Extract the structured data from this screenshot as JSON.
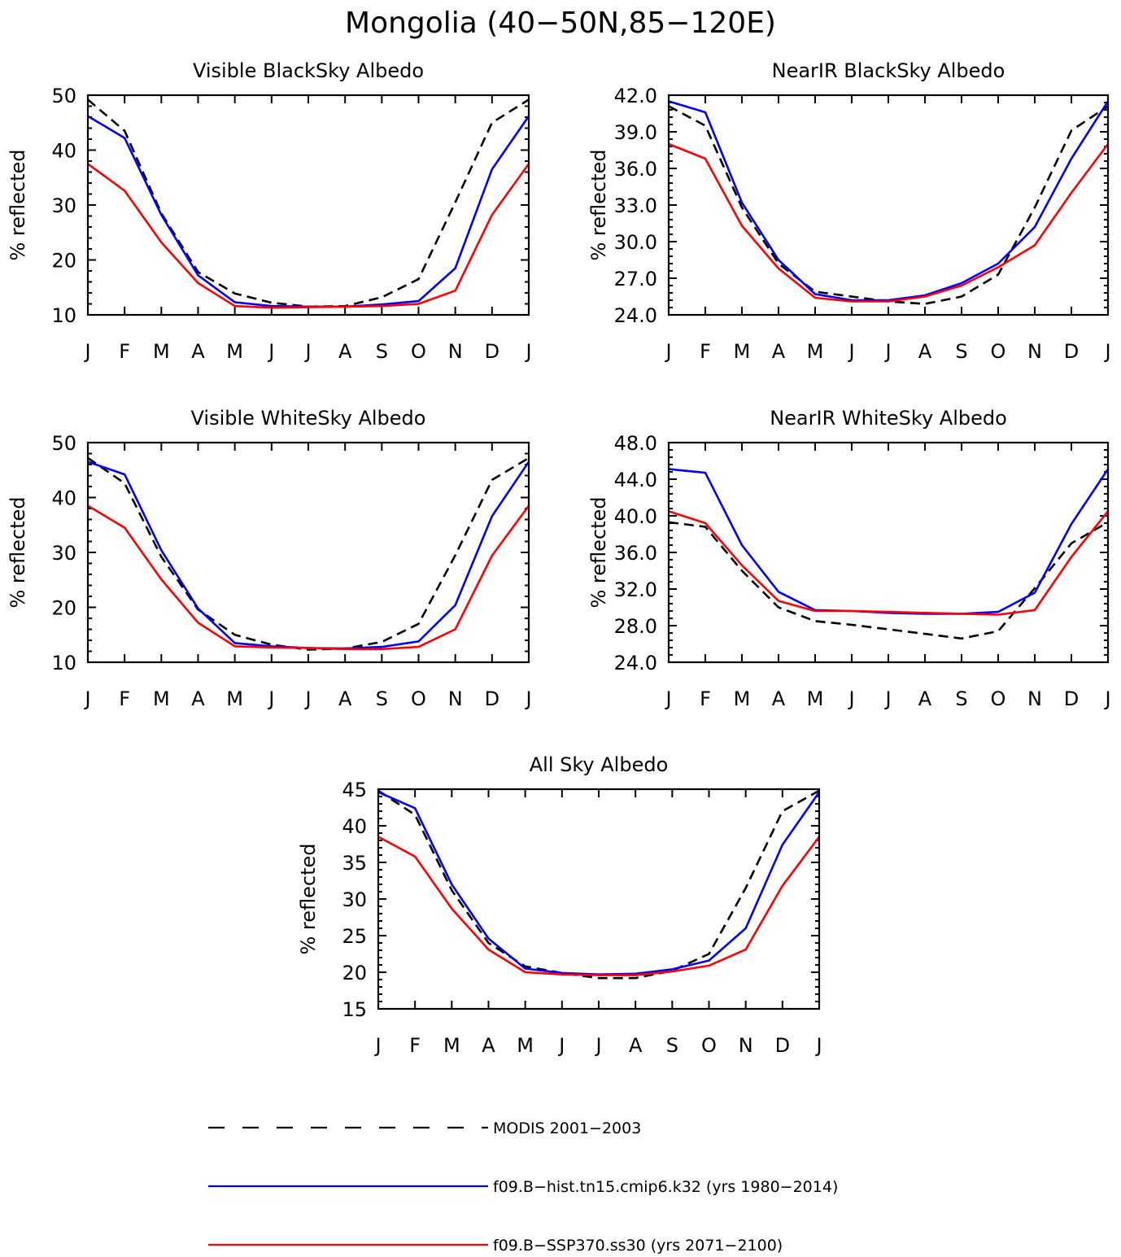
{
  "figure_title": "Mongolia (40−50N,85−120E)",
  "colors": {
    "modis": "#000000",
    "hist": "#0000ff",
    "ssp": "#ff0000"
  },
  "legend": [
    {
      "label": "MODIS 2001−2003",
      "color": "#000000",
      "style": "dashed"
    },
    {
      "label": "f09.B−hist.tn15.cmip6.k32 (yrs 1980−2014)",
      "color": "#0000ff",
      "style": "solid"
    },
    {
      "label": "f09.B−SSP370.ss30 (yrs 2071−2100)",
      "color": "#ff0000",
      "style": "solid"
    }
  ],
  "chart_data": [
    {
      "type": "line",
      "title": "Visible BlackSky Albedo",
      "ylabel": "% reflected",
      "categories": [
        "J",
        "F",
        "M",
        "A",
        "M",
        "J",
        "J",
        "A",
        "S",
        "O",
        "N",
        "D",
        "J"
      ],
      "ylim": [
        10,
        50
      ],
      "yticks": [
        "10",
        "20",
        "30",
        "40",
        "50"
      ],
      "series": [
        {
          "name": "MODIS 2001−2003",
          "color": "#000000",
          "style": "dashed",
          "values": [
            49.2,
            43.5,
            28.5,
            17.8,
            13.9,
            12.2,
            11.5,
            11.6,
            13.2,
            16.5,
            30.5,
            45.0,
            49.2
          ]
        },
        {
          "name": "f09.B−hist.tn15.cmip6.k32 (yrs 1980−2014)",
          "color": "#0000ff",
          "style": "solid",
          "values": [
            46.2,
            42.2,
            28.2,
            17.2,
            12.3,
            11.6,
            11.5,
            11.5,
            11.9,
            12.5,
            18.5,
            36.5,
            46.2
          ]
        },
        {
          "name": "f09.B−SSP370.ss30 (yrs 2071−2100)",
          "color": "#ff0000",
          "style": "solid",
          "values": [
            37.5,
            32.6,
            23.2,
            15.8,
            11.6,
            11.3,
            11.4,
            11.5,
            11.6,
            12.0,
            14.4,
            28.2,
            37.5
          ]
        }
      ]
    },
    {
      "type": "line",
      "title": "NearIR BlackSky Albedo",
      "ylabel": "% reflected",
      "categories": [
        "J",
        "F",
        "M",
        "A",
        "M",
        "J",
        "J",
        "A",
        "S",
        "O",
        "N",
        "D",
        "J"
      ],
      "ylim": [
        24,
        42
      ],
      "yticks": [
        "24.0",
        "27.0",
        "30.0",
        "33.0",
        "36.0",
        "39.0",
        "42.0"
      ],
      "series": [
        {
          "name": "MODIS 2001−2003",
          "color": "#000000",
          "style": "dashed",
          "values": [
            41.1,
            39.5,
            32.8,
            28.2,
            25.9,
            25.5,
            25.1,
            24.9,
            25.5,
            27.3,
            32.8,
            39.1,
            41.1
          ]
        },
        {
          "name": "f09.B−hist.tn15.cmip6.k32 (yrs 1980−2014)",
          "color": "#0000ff",
          "style": "solid",
          "values": [
            41.5,
            40.6,
            33.2,
            28.5,
            25.7,
            25.2,
            25.2,
            25.6,
            26.6,
            28.2,
            31.2,
            36.8,
            41.5
          ]
        },
        {
          "name": "f09.B−SSP370.ss30 (yrs 2071−2100)",
          "color": "#ff0000",
          "style": "solid",
          "values": [
            38.0,
            36.8,
            31.3,
            27.8,
            25.4,
            25.1,
            25.1,
            25.5,
            26.4,
            27.9,
            29.7,
            34.0,
            38.0
          ]
        }
      ]
    },
    {
      "type": "line",
      "title": "Visible WhiteSky Albedo",
      "ylabel": "% reflected",
      "categories": [
        "J",
        "F",
        "M",
        "A",
        "M",
        "J",
        "J",
        "A",
        "S",
        "O",
        "N",
        "D",
        "J"
      ],
      "ylim": [
        10,
        50
      ],
      "yticks": [
        "10",
        "20",
        "30",
        "40",
        "50"
      ],
      "series": [
        {
          "name": "MODIS 2001−2003",
          "color": "#000000",
          "style": "dashed",
          "values": [
            47.2,
            42.6,
            29.2,
            19.6,
            15.0,
            13.2,
            12.3,
            12.5,
            13.7,
            17.0,
            29.5,
            43.2,
            47.2
          ]
        },
        {
          "name": "f09.B−hist.tn15.cmip6.k32 (yrs 1980−2014)",
          "color": "#0000ff",
          "style": "solid",
          "values": [
            46.5,
            44.2,
            30.4,
            19.8,
            13.5,
            12.9,
            12.6,
            12.5,
            12.8,
            13.8,
            20.4,
            36.6,
            46.5
          ]
        },
        {
          "name": "f09.B−SSP370.ss30 (yrs 2071−2100)",
          "color": "#ff0000",
          "style": "solid",
          "values": [
            38.5,
            34.5,
            25.1,
            17.2,
            12.9,
            12.7,
            12.6,
            12.4,
            12.4,
            12.8,
            16.0,
            29.4,
            38.5
          ]
        }
      ]
    },
    {
      "type": "line",
      "title": "NearIR WhiteSky Albedo",
      "ylabel": "% reflected",
      "categories": [
        "J",
        "F",
        "M",
        "A",
        "M",
        "J",
        "J",
        "A",
        "S",
        "O",
        "N",
        "D",
        "J"
      ],
      "ylim": [
        24,
        48
      ],
      "yticks": [
        "24.0",
        "28.0",
        "32.0",
        "36.0",
        "40.0",
        "44.0",
        "48.0"
      ],
      "series": [
        {
          "name": "MODIS 2001−2003",
          "color": "#000000",
          "style": "dashed",
          "values": [
            39.3,
            38.8,
            34.0,
            30.0,
            28.5,
            28.1,
            27.6,
            27.1,
            26.6,
            27.4,
            32.1,
            37.0,
            39.3
          ]
        },
        {
          "name": "f09.B−hist.tn15.cmip6.k32 (yrs 1980−2014)",
          "color": "#0000ff",
          "style": "solid",
          "values": [
            45.1,
            44.7,
            36.8,
            31.7,
            29.7,
            29.6,
            29.4,
            29.3,
            29.3,
            29.5,
            31.6,
            39.1,
            45.1
          ]
        },
        {
          "name": "f09.B−SSP370.ss30 (yrs 2071−2100)",
          "color": "#ff0000",
          "style": "solid",
          "values": [
            40.5,
            39.2,
            34.6,
            30.7,
            29.6,
            29.6,
            29.5,
            29.4,
            29.3,
            29.2,
            29.7,
            35.5,
            40.5
          ]
        }
      ]
    },
    {
      "type": "line",
      "title": "All Sky Albedo",
      "ylabel": "% reflected",
      "categories": [
        "J",
        "F",
        "M",
        "A",
        "M",
        "J",
        "J",
        "A",
        "S",
        "O",
        "N",
        "D",
        "J"
      ],
      "ylim": [
        15,
        45
      ],
      "yticks": [
        "15",
        "20",
        "25",
        "30",
        "35",
        "40",
        "45"
      ],
      "series": [
        {
          "name": "MODIS 2001−2003",
          "color": "#000000",
          "style": "dashed",
          "values": [
            44.8,
            41.5,
            31.2,
            24.0,
            20.8,
            19.9,
            19.2,
            19.2,
            20.2,
            22.5,
            31.5,
            42.0,
            44.8
          ]
        },
        {
          "name": "f09.B−hist.tn15.cmip6.k32 (yrs 1980−2014)",
          "color": "#0000ff",
          "style": "solid",
          "values": [
            44.6,
            42.4,
            32.0,
            24.6,
            20.5,
            19.9,
            19.7,
            19.8,
            20.4,
            21.6,
            26.0,
            37.4,
            44.6
          ]
        },
        {
          "name": "f09.B−SSP370.ss30 (yrs 2071−2100)",
          "color": "#ff0000",
          "style": "solid",
          "values": [
            38.5,
            35.8,
            28.7,
            23.1,
            20.0,
            19.7,
            19.6,
            19.6,
            20.1,
            20.9,
            23.1,
            31.8,
            38.5
          ]
        }
      ]
    }
  ]
}
